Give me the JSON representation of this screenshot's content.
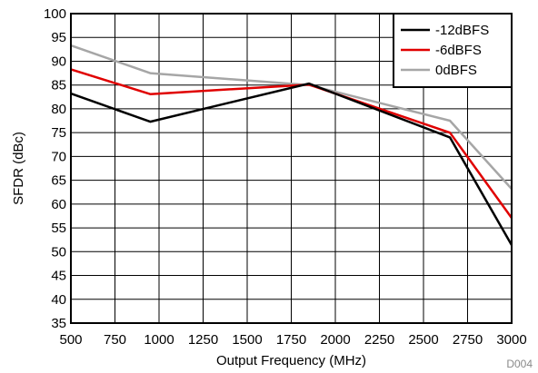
{
  "chart_data": {
    "type": "line",
    "title": "",
    "xlabel": "Output Frequency (MHz)",
    "ylabel": "SFDR (dBc)",
    "xlim": [
      500,
      3000
    ],
    "ylim": [
      35,
      100
    ],
    "x_ticks": [
      500,
      750,
      1000,
      1250,
      1500,
      1750,
      2000,
      2250,
      2500,
      2750,
      3000
    ],
    "y_ticks": [
      35,
      40,
      45,
      50,
      55,
      60,
      65,
      70,
      75,
      80,
      85,
      90,
      95,
      100
    ],
    "grid": true,
    "legend_position": "top-right",
    "series": [
      {
        "name": "-12dBFS",
        "color": "#000000",
        "x": [
          500,
          950,
          1850,
          2650,
          3000
        ],
        "y": [
          83.2,
          77.3,
          85.3,
          74.0,
          51.4
        ]
      },
      {
        "name": "-6dBFS",
        "color": "#e00000",
        "x": [
          500,
          950,
          1850,
          2650,
          3000
        ],
        "y": [
          88.3,
          83.1,
          85.1,
          75.0,
          57.1
        ]
      },
      {
        "name": "0dBFS",
        "color": "#a6a6a6",
        "x": [
          500,
          950,
          1850,
          2650,
          3000
        ],
        "y": [
          93.3,
          87.5,
          85.0,
          77.5,
          63.2
        ]
      }
    ]
  },
  "figure_code": "D004"
}
